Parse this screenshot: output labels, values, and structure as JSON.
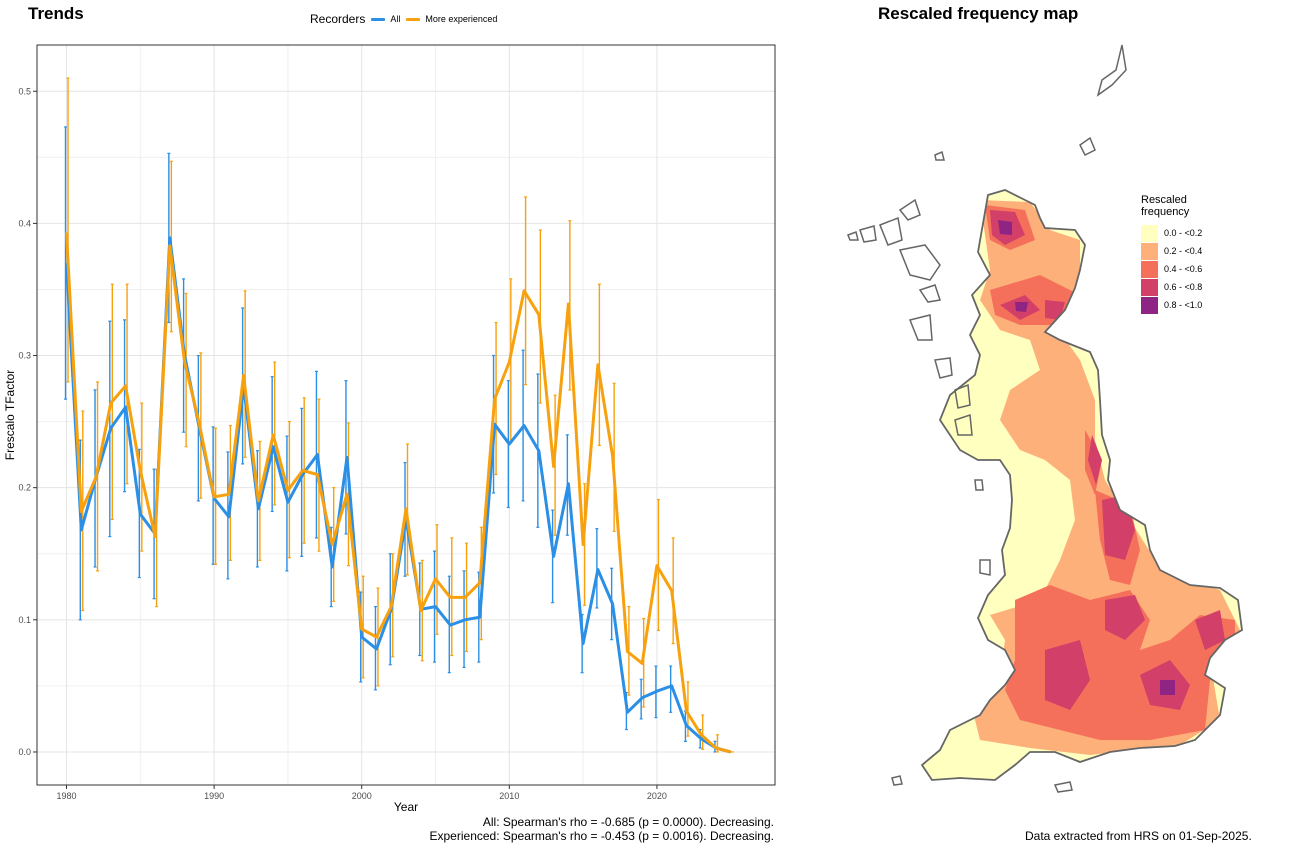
{
  "trends": {
    "title": "Trends",
    "stats_line1": "All: Spearman's rho = -0.685 (p = 0.0000). Decreasing.",
    "stats_line2": "Experienced: Spearman's rho = -0.453 (p = 0.0016). Decreasing."
  },
  "legend": {
    "title": "Recorders",
    "items": [
      {
        "label": "All",
        "color": "#2b8fe6"
      },
      {
        "label": "More experienced",
        "color": "#f7a10e"
      }
    ]
  },
  "chart_data": {
    "type": "line",
    "title": "Trends",
    "xlabel": "Year",
    "ylabel": "Frescalo TFactor",
    "xlim": [
      1978,
      2028
    ],
    "ylim": [
      -0.025,
      0.535
    ],
    "xticks": [
      1980,
      1990,
      2000,
      2010,
      2020
    ],
    "yticks": [
      0.0,
      0.1,
      0.2,
      0.3,
      0.4,
      0.5
    ],
    "ytick_labels": [
      "0.0",
      "0.1",
      "0.2",
      "0.3",
      "0.4",
      "0.5"
    ],
    "grid": true,
    "legend_position": "top",
    "series": [
      {
        "name": "All",
        "color": "#2b8fe6",
        "x": [
          1980,
          1981,
          1982,
          1983,
          1984,
          1985,
          1986,
          1987,
          1988,
          1989,
          1990,
          1991,
          1992,
          1993,
          1994,
          1995,
          1996,
          1997,
          1998,
          1999,
          2000,
          2001,
          2002,
          2003,
          2004,
          2005,
          2006,
          2007,
          2008,
          2009,
          2010,
          2011,
          2012,
          2013,
          2014,
          2015,
          2016,
          2017,
          2018,
          2019,
          2020,
          2021,
          2022,
          2023,
          2024,
          2025
        ],
        "y": [
          0.37,
          0.168,
          0.208,
          0.245,
          0.261,
          0.18,
          0.165,
          0.389,
          0.3,
          0.245,
          0.192,
          0.178,
          0.277,
          0.184,
          0.231,
          0.189,
          0.21,
          0.225,
          0.14,
          0.223,
          0.087,
          0.078,
          0.108,
          0.176,
          0.108,
          0.11,
          0.096,
          0.1,
          0.102,
          0.248,
          0.233,
          0.247,
          0.228,
          0.148,
          0.203,
          0.082,
          0.138,
          0.112,
          0.03,
          0.041,
          0.046,
          0.05,
          0.02,
          0.01,
          0.003,
          0.0
        ],
        "lower": [
          0.267,
          0.1,
          0.14,
          0.163,
          0.197,
          0.132,
          0.116,
          0.325,
          0.242,
          0.19,
          0.142,
          0.131,
          0.218,
          0.14,
          0.182,
          0.137,
          0.148,
          0.162,
          0.11,
          0.165,
          0.053,
          0.047,
          0.066,
          0.133,
          0.073,
          0.068,
          0.06,
          0.064,
          0.068,
          0.196,
          0.185,
          0.19,
          0.17,
          0.113,
          0.164,
          0.06,
          0.109,
          0.085,
          0.017,
          0.025,
          0.026,
          0.03,
          0.008,
          0.003,
          0.0,
          0.0
        ],
        "upper": [
          0.473,
          0.236,
          0.274,
          0.326,
          0.327,
          0.229,
          0.214,
          0.453,
          0.358,
          0.3,
          0.246,
          0.227,
          0.336,
          0.228,
          0.284,
          0.239,
          0.26,
          0.288,
          0.17,
          0.281,
          0.121,
          0.11,
          0.15,
          0.219,
          0.143,
          0.152,
          0.133,
          0.137,
          0.136,
          0.3,
          0.281,
          0.304,
          0.286,
          0.183,
          0.24,
          0.104,
          0.169,
          0.139,
          0.045,
          0.055,
          0.065,
          0.065,
          0.031,
          0.017,
          0.008,
          0.0
        ]
      },
      {
        "name": "More experienced",
        "color": "#f7a10e",
        "x": [
          1980,
          1981,
          1982,
          1983,
          1984,
          1985,
          1986,
          1987,
          1988,
          1989,
          1990,
          1991,
          1992,
          1993,
          1994,
          1995,
          1996,
          1997,
          1998,
          1999,
          2000,
          2001,
          2002,
          2003,
          2004,
          2005,
          2006,
          2007,
          2008,
          2009,
          2010,
          2011,
          2012,
          2013,
          2014,
          2015,
          2016,
          2017,
          2018,
          2019,
          2020,
          2021,
          2022,
          2023,
          2024,
          2025
        ],
        "y": [
          0.393,
          0.182,
          0.208,
          0.264,
          0.277,
          0.213,
          0.163,
          0.383,
          0.295,
          0.248,
          0.193,
          0.195,
          0.285,
          0.19,
          0.24,
          0.198,
          0.213,
          0.21,
          0.157,
          0.195,
          0.093,
          0.087,
          0.11,
          0.184,
          0.107,
          0.131,
          0.117,
          0.117,
          0.128,
          0.267,
          0.295,
          0.349,
          0.331,
          0.216,
          0.339,
          0.157,
          0.293,
          0.224,
          0.076,
          0.067,
          0.141,
          0.122,
          0.031,
          0.013,
          0.003,
          0.0
        ],
        "lower": [
          0.28,
          0.107,
          0.137,
          0.176,
          0.203,
          0.152,
          0.11,
          0.318,
          0.231,
          0.192,
          0.142,
          0.145,
          0.223,
          0.145,
          0.187,
          0.147,
          0.158,
          0.152,
          0.114,
          0.141,
          0.056,
          0.05,
          0.072,
          0.134,
          0.069,
          0.089,
          0.073,
          0.076,
          0.085,
          0.21,
          0.235,
          0.278,
          0.264,
          0.164,
          0.274,
          0.111,
          0.232,
          0.167,
          0.043,
          0.034,
          0.092,
          0.082,
          0.012,
          0.002,
          0.0,
          0.0
        ],
        "upper": [
          0.51,
          0.258,
          0.28,
          0.354,
          0.354,
          0.264,
          0.214,
          0.447,
          0.347,
          0.302,
          0.245,
          0.247,
          0.349,
          0.235,
          0.295,
          0.25,
          0.268,
          0.267,
          0.2,
          0.249,
          0.133,
          0.124,
          0.15,
          0.233,
          0.145,
          0.172,
          0.162,
          0.158,
          0.17,
          0.325,
          0.358,
          0.42,
          0.395,
          0.27,
          0.402,
          0.203,
          0.354,
          0.279,
          0.11,
          0.101,
          0.191,
          0.162,
          0.053,
          0.028,
          0.013,
          0.0
        ]
      }
    ]
  },
  "map": {
    "title": "Rescaled frequency map",
    "legend_title_line1": "Rescaled",
    "legend_title_line2": "frequency",
    "classes": [
      {
        "label": "0.0 - <0.2",
        "color": "#ffffbf"
      },
      {
        "label": "0.2 - <0.4",
        "color": "#fdb07a"
      },
      {
        "label": "0.4 - <0.6",
        "color": "#f5705b"
      },
      {
        "label": "0.6 - <0.8",
        "color": "#d23f69"
      },
      {
        "label": "0.8 - <1.0",
        "color": "#8e2585"
      }
    ],
    "footnote": "Data extracted from HRS on 01-Sep-2025."
  }
}
